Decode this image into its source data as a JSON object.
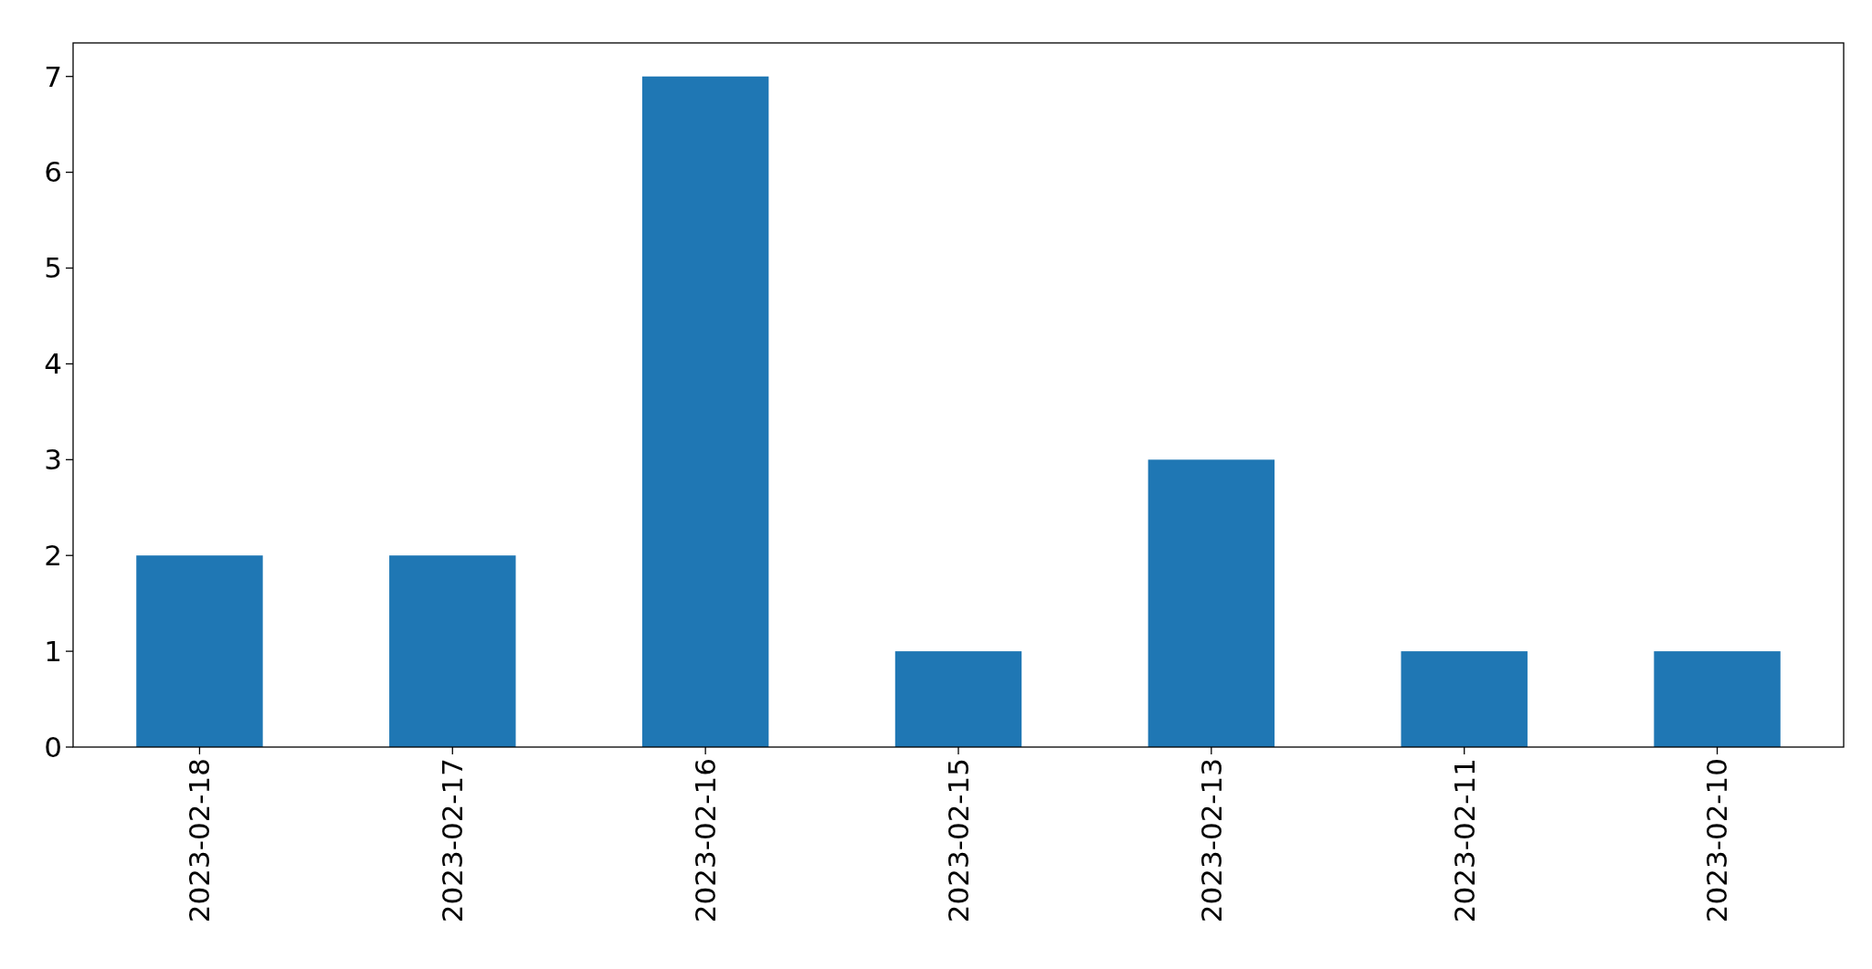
{
  "chart_data": {
    "type": "bar",
    "categories": [
      "2023-02-18",
      "2023-02-17",
      "2023-02-16",
      "2023-02-15",
      "2023-02-13",
      "2023-02-11",
      "2023-02-10"
    ],
    "values": [
      2,
      2,
      7,
      1,
      3,
      1,
      1
    ],
    "color": "#1f77b4",
    "ylim": [
      0,
      7.35
    ],
    "yticks": [
      0,
      1,
      2,
      3,
      4,
      5,
      6,
      7
    ],
    "grid": false
  }
}
